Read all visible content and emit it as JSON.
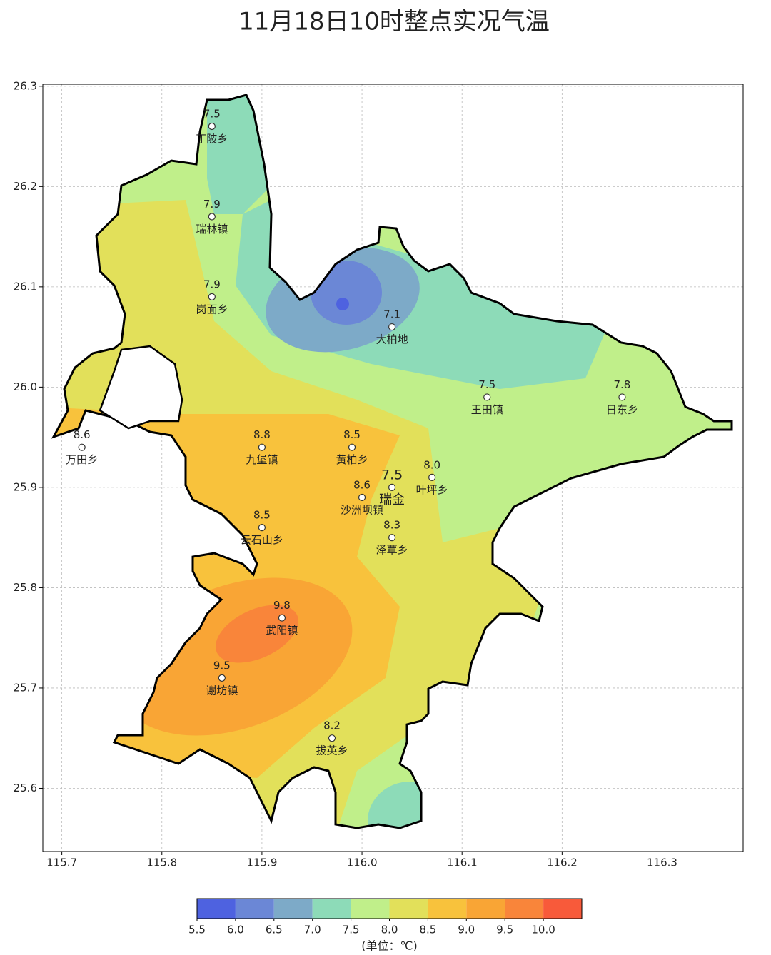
{
  "title": "11月18日10时整点实况气温",
  "map": {
    "xlim": [
      115.681,
      116.381
    ],
    "ylim": [
      25.537,
      26.302
    ],
    "xticks": [
      115.7,
      115.8,
      115.9,
      {
        "value": 116,
        "label": "116.0"
      },
      116.1,
      116.2,
      116.3
    ],
    "yticks": [
      25.6,
      25.7,
      25.8,
      25.9,
      {
        "value": 26,
        "label": "26.0"
      },
      26.1,
      26.2,
      26.3
    ],
    "grid": true,
    "stations": [
      {
        "name": "丁陂乡",
        "value": 7.5,
        "lon": 115.85,
        "lat": 26.26
      },
      {
        "name": "瑞林镇",
        "value": 7.9,
        "lon": 115.85,
        "lat": 26.17
      },
      {
        "name": "岗面乡",
        "value": 7.9,
        "lon": 115.85,
        "lat": 26.09
      },
      {
        "name": "大柏地",
        "value": 7.1,
        "lon": 116.03,
        "lat": 26.06
      },
      {
        "name": "王田镇",
        "value": 7.5,
        "lon": 116.125,
        "lat": 25.99
      },
      {
        "name": "日东乡",
        "value": 7.8,
        "lon": 116.26,
        "lat": 25.99
      },
      {
        "name": "万田乡",
        "value": 8.6,
        "lon": 115.72,
        "lat": 25.94
      },
      {
        "name": "九堡镇",
        "value": 8.8,
        "lon": 115.9,
        "lat": 25.94
      },
      {
        "name": "黄柏乡",
        "value": 8.5,
        "lon": 115.99,
        "lat": 25.94
      },
      {
        "name": "叶坪乡",
        "value": 8,
        "label": "8.0",
        "lon": 116.07,
        "lat": 25.91
      },
      {
        "name": "瑞金",
        "value": 7.5,
        "lon": 116.03,
        "lat": 25.9,
        "capital": true
      },
      {
        "name": "沙洲坝镇",
        "value": 8.6,
        "lon": 116.0,
        "lat": 25.89
      },
      {
        "name": "云石山乡",
        "value": 8.5,
        "lon": 115.9,
        "lat": 25.86
      },
      {
        "name": "泽覃乡",
        "value": 8.3,
        "lon": 116.03,
        "lat": 25.85
      },
      {
        "name": "武阳镇",
        "value": 9.8,
        "lon": 115.92,
        "lat": 25.77
      },
      {
        "name": "谢坊镇",
        "value": 9.5,
        "lon": 115.86,
        "lat": 25.71
      },
      {
        "name": "拔英乡",
        "value": 8.2,
        "lon": 115.97,
        "lat": 25.65
      }
    ]
  },
  "colorbar": {
    "label": "(单位：℃)",
    "lim": [
      5.5,
      10.5
    ],
    "ticks": [
      5.5,
      {
        "value": 6,
        "label": "6.0"
      },
      6.5,
      {
        "value": 7,
        "label": "7.0"
      },
      7.5,
      {
        "value": 8,
        "label": "8.0"
      },
      8.5,
      {
        "value": 9,
        "label": "9.0"
      },
      9.5,
      {
        "value": 10,
        "label": "10.0"
      }
    ],
    "colors": [
      "#4e62e0",
      "#6b87d6",
      "#7daac8",
      "#8ddbb8",
      "#c0ef8a",
      "#e2e05a",
      "#f8c23c",
      "#f9a535",
      "#f9853a",
      "#f85a3a"
    ]
  }
}
